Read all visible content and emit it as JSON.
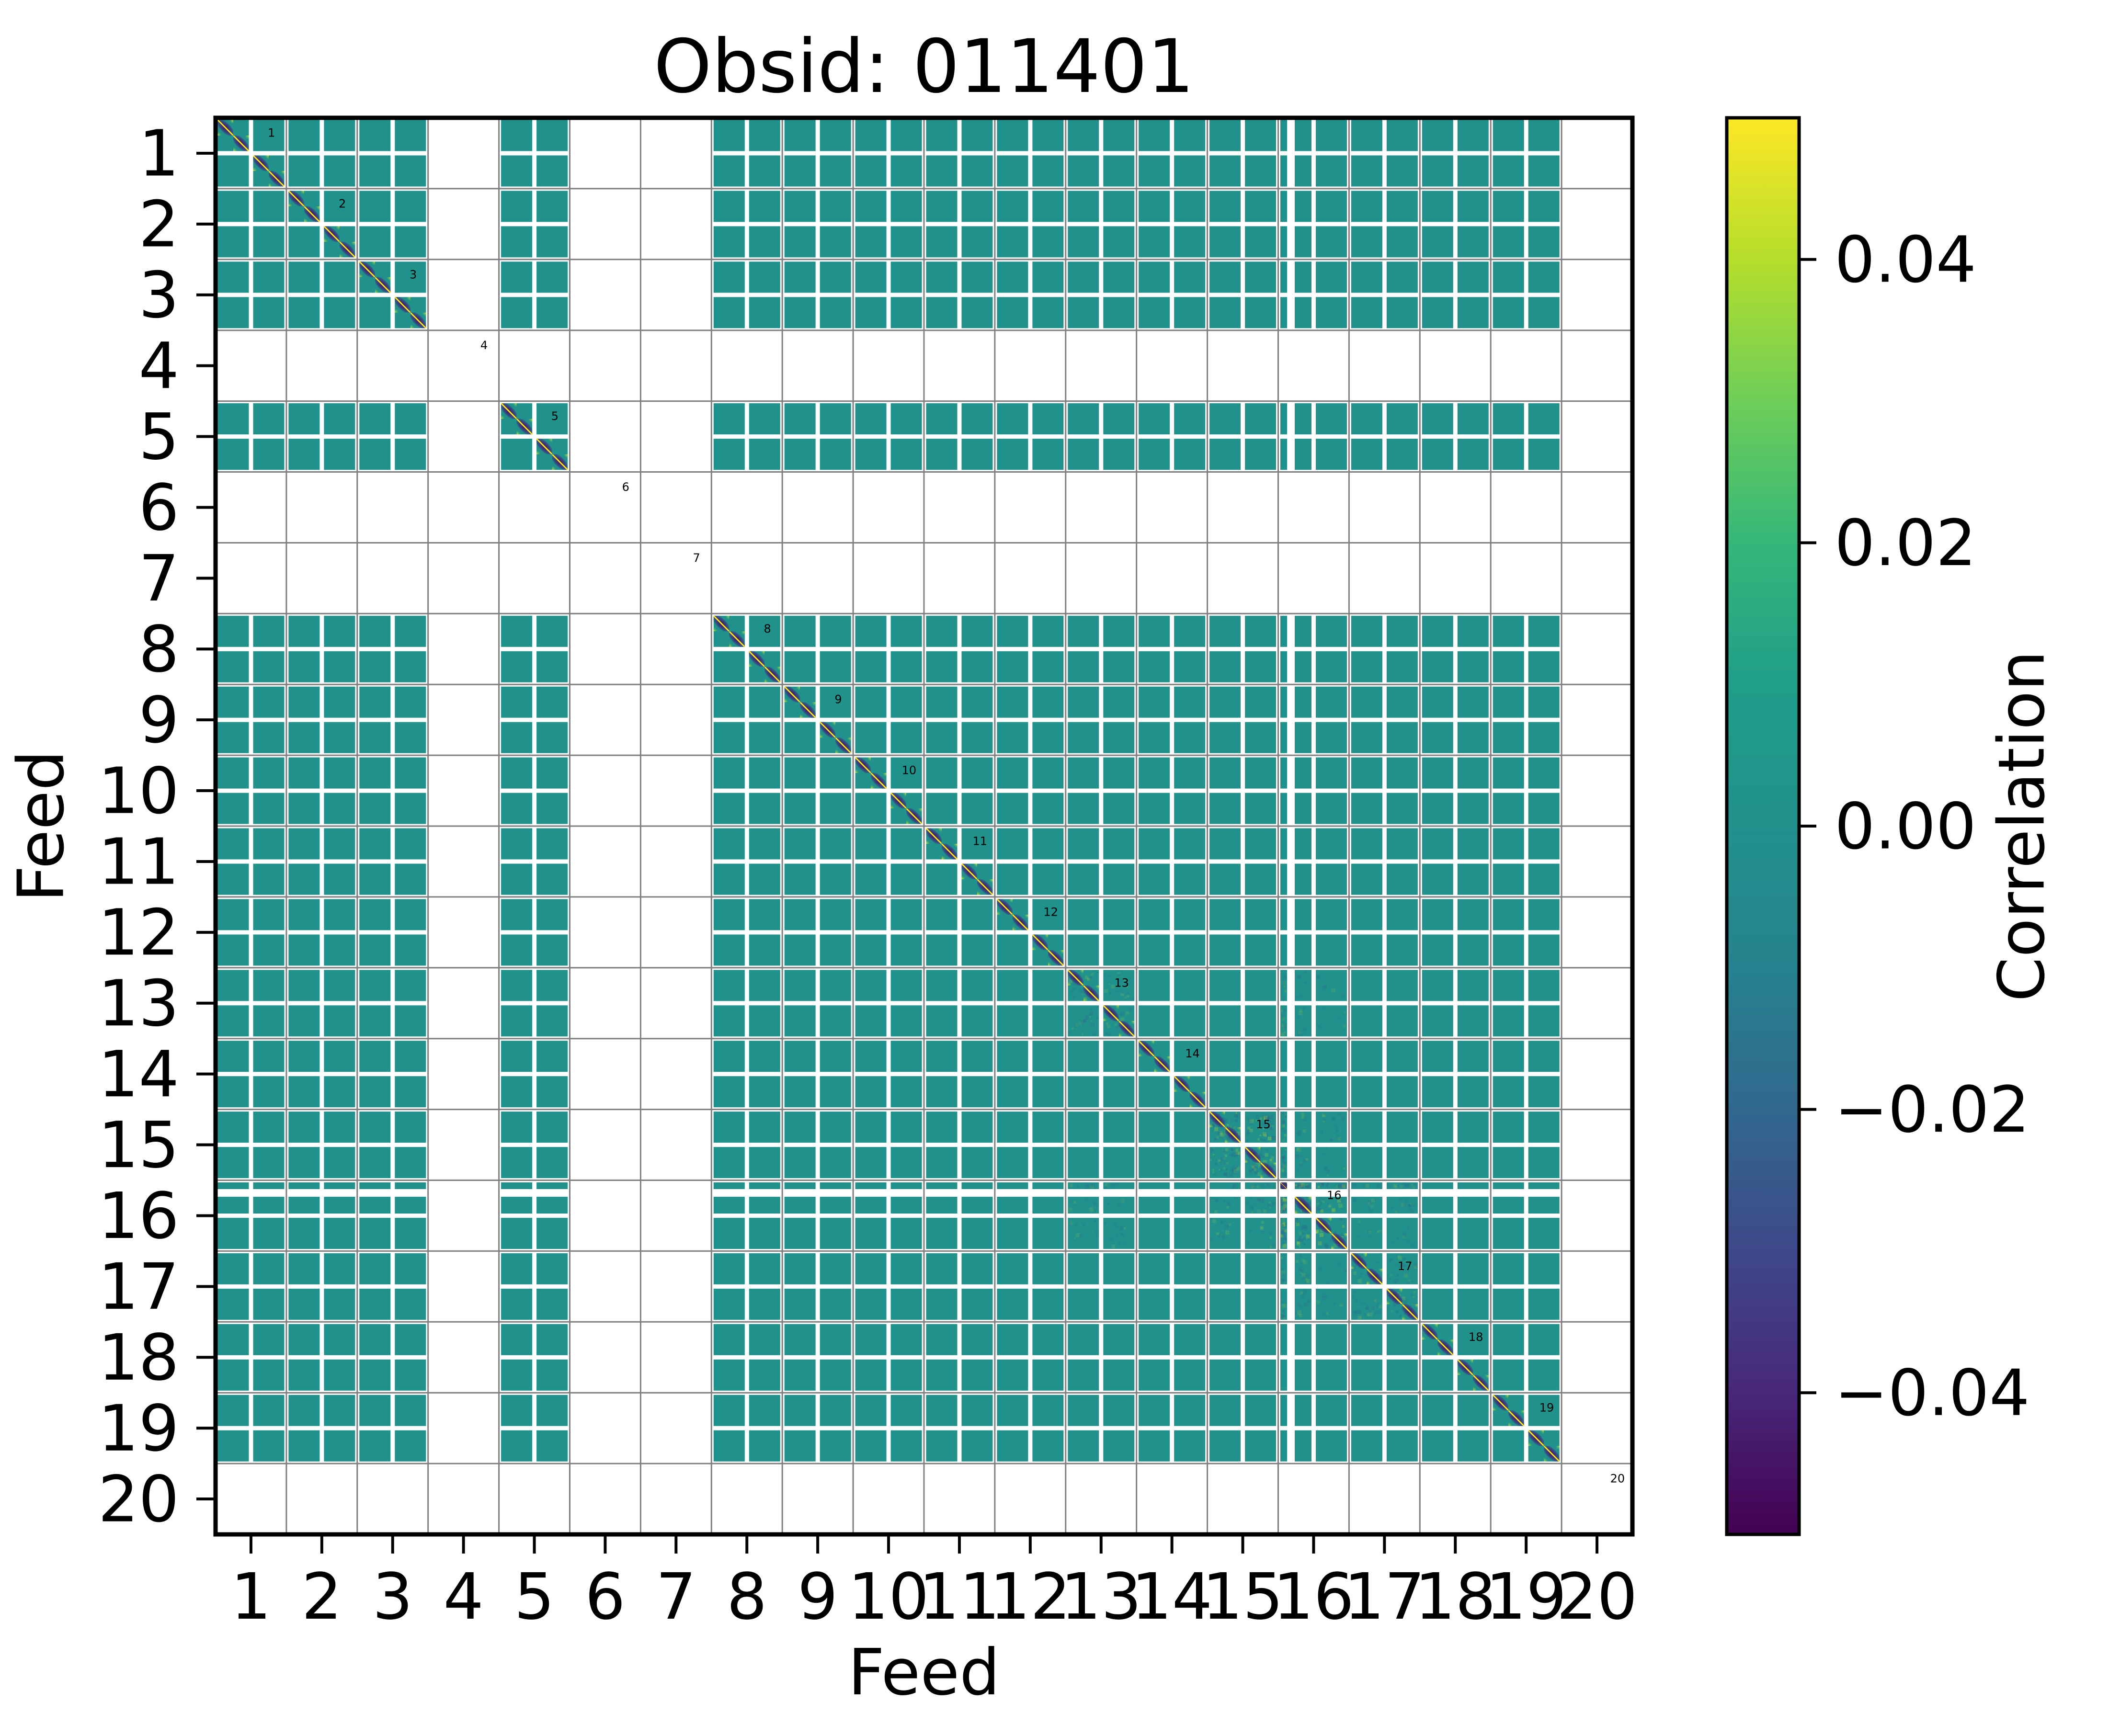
{
  "chart_data": {
    "type": "heatmap",
    "title": "Obsid: 011401",
    "xlabel": "Feed",
    "ylabel": "Feed",
    "x_ticks": [
      "1",
      "2",
      "3",
      "4",
      "5",
      "6",
      "7",
      "8",
      "9",
      "10",
      "11",
      "12",
      "13",
      "14",
      "15",
      "16",
      "17",
      "18",
      "19",
      "20"
    ],
    "y_ticks": [
      "1",
      "2",
      "3",
      "4",
      "5",
      "6",
      "7",
      "8",
      "9",
      "10",
      "11",
      "12",
      "13",
      "14",
      "15",
      "16",
      "17",
      "18",
      "19",
      "20"
    ],
    "n_feeds": 20,
    "diagonal_labels": [
      "1",
      "2",
      "3",
      "4",
      "5",
      "6",
      "7",
      "8",
      "9",
      "10",
      "11",
      "12",
      "13",
      "14",
      "15",
      "16",
      "17",
      "18",
      "19",
      "20"
    ],
    "present_feeds": [
      1,
      2,
      3,
      5,
      8,
      9,
      10,
      11,
      12,
      13,
      14,
      15,
      16,
      17,
      18,
      19
    ],
    "missing_feeds": [
      4,
      6,
      7,
      20
    ],
    "bands_per_feed": 2,
    "channels_per_band": 2,
    "off_diagonal_value": 0.0,
    "diagonal_value": 1.0,
    "feed_segments": {
      "default": [
        [
          4.5,
          65
        ],
        [
          78.5,
          65
        ]
      ],
      "16": [
        [
          4.5,
          14
        ],
        [
          34.5,
          35
        ],
        [
          78.5,
          65
        ]
      ]
    },
    "diagonal_cells": {
      "default": [
        [
          4.5,
          32.5,
          0
        ],
        [
          37,
          32.5,
          0
        ],
        [
          78.5,
          32.5,
          0
        ],
        [
          111,
          32.5,
          0
        ]
      ],
      "16": [
        [
          4.5,
          14,
          1
        ],
        [
          34.5,
          35,
          0
        ],
        [
          78.5,
          32.5,
          0
        ],
        [
          111,
          32.5,
          0
        ]
      ]
    },
    "textured_blocks": [
      [
        13,
        13,
        0.45
      ],
      [
        15,
        15,
        1.0
      ],
      [
        16,
        16,
        1.0
      ],
      [
        17,
        17,
        0.5
      ],
      [
        15,
        16,
        0.35
      ],
      [
        16,
        15,
        0.35
      ],
      [
        16,
        17,
        0.3
      ],
      [
        17,
        16,
        0.3
      ],
      [
        16,
        13,
        0.25
      ],
      [
        13,
        16,
        0.25
      ]
    ],
    "colorbar": {
      "label": "Correlation",
      "vmin": -0.05,
      "vmax": 0.05,
      "tick_values": [
        0.04,
        0.02,
        0.0,
        -0.02,
        -0.04
      ],
      "tick_labels": [
        "0.04",
        "0.02",
        "0.00",
        "−0.02",
        "−0.04"
      ]
    },
    "colormap": {
      "name": "viridis",
      "stops": [
        "#440154",
        "#482878",
        "#3e4989",
        "#31688e",
        "#26828e",
        "#21918c",
        "#1f9e89",
        "#35b779",
        "#6ece58",
        "#b5de2b",
        "#fde725"
      ]
    },
    "colors": {
      "zero_teal": "#21918c",
      "diag_yellow": "#fde725",
      "wing_dark_purple": "#440154",
      "wing_indigo": "#3b3a7d",
      "wing_blue": "#31688e",
      "corner_green": "#c2df31",
      "fragment_dark": "#3a2d6e",
      "grid_gray": "#7f7f7f",
      "axis_black": "#000000",
      "background": "#ffffff",
      "noise_blue": "#2f5f8e",
      "noise_green": "#b5de2b"
    }
  }
}
